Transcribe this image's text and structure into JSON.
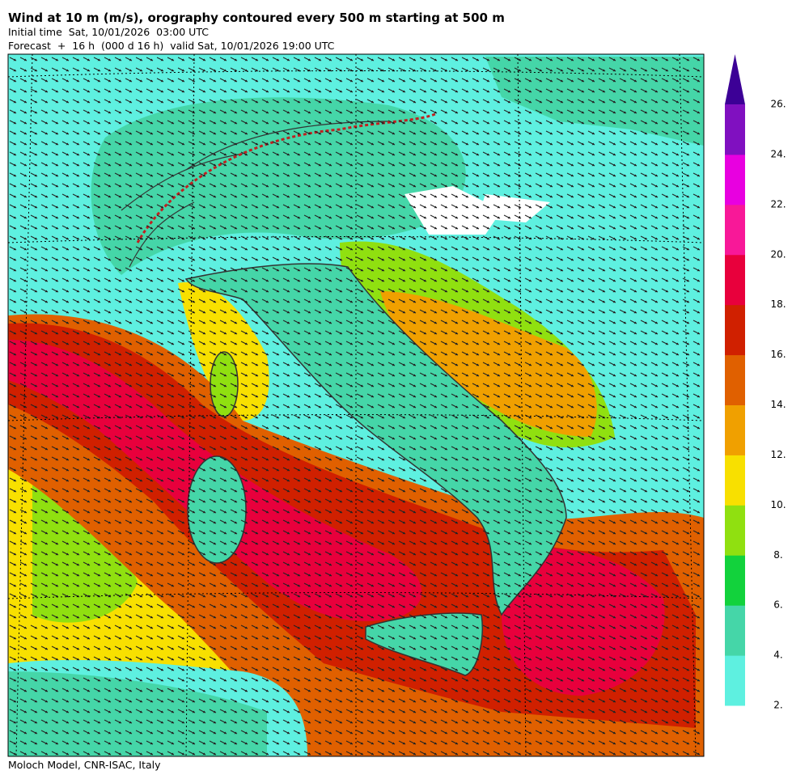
{
  "header": {
    "title": "Wind at 10 m (m/s), orography contoured every 500 m starting at 500 m",
    "initial_time": "Initial time  Sat, 10/01/2026  03:00 UTC",
    "forecast": "Forecast  +  16 h  (000 d 16 h)  valid Sat, 10/01/2026 19:00 UTC"
  },
  "colorbar": {
    "colors": [
      "#5ef0e0",
      "#45d6a8",
      "#12d23c",
      "#90e010",
      "#f8e000",
      "#f0a000",
      "#e06000",
      "#d02000",
      "#e8003c",
      "#f81898",
      "#e800e0",
      "#8010c0"
    ],
    "extend_color": "#3c0096",
    "labels": [
      "2.",
      "4.",
      "6.",
      "8.",
      "10.",
      "12.",
      "14.",
      "16.",
      "18.",
      "20.",
      "22.",
      "24.",
      "26."
    ]
  },
  "footer": "Moloch Model, CNR-ISAC, Italy"
}
